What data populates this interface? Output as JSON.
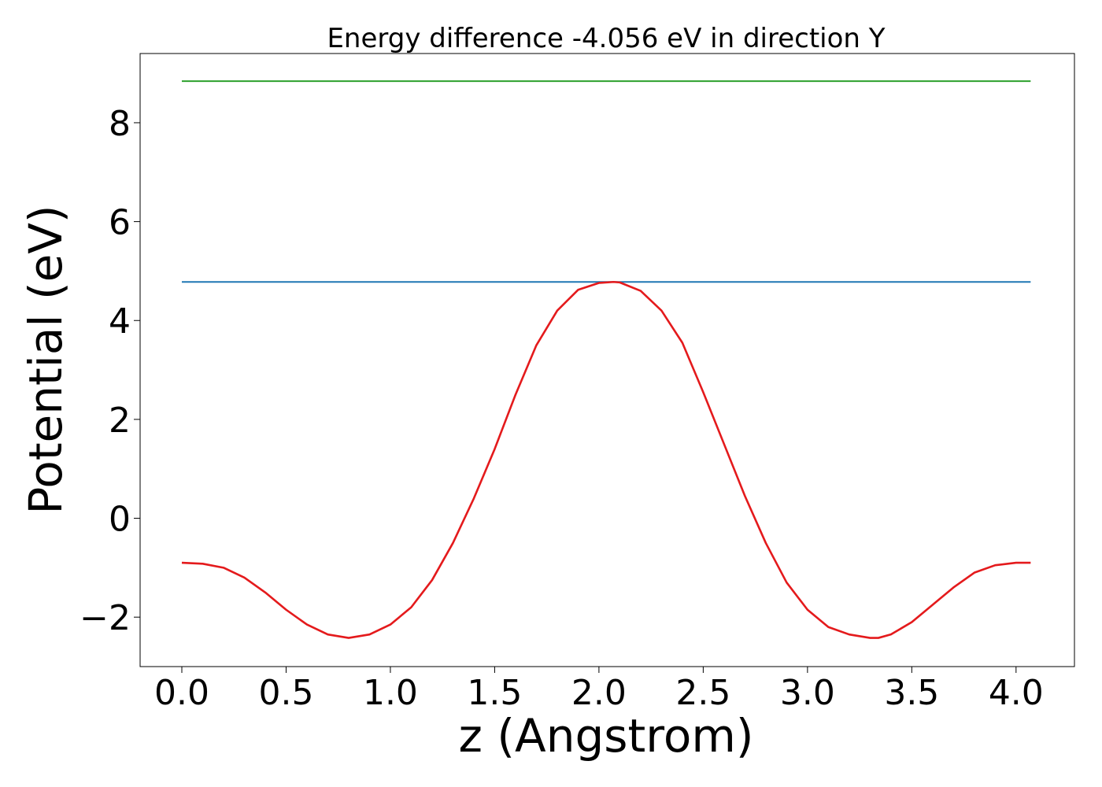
{
  "chart_data": {
    "type": "line",
    "title": "Energy difference -4.056 eV in direction Y",
    "xlabel": "z (Angstrom)",
    "ylabel": "Potential (eV)",
    "xlim": [
      -0.2,
      4.28
    ],
    "ylim": [
      -3.0,
      9.4
    ],
    "xticks": [
      0.0,
      0.5,
      1.0,
      1.5,
      2.0,
      2.5,
      3.0,
      3.5,
      4.0
    ],
    "xtick_labels": [
      "0.0",
      "0.5",
      "1.0",
      "1.5",
      "2.0",
      "2.5",
      "3.0",
      "3.5",
      "4.0"
    ],
    "yticks": [
      -2,
      0,
      2,
      4,
      6,
      8
    ],
    "ytick_labels": [
      "−2",
      "0",
      "2",
      "4",
      "6",
      "8"
    ],
    "grid": false,
    "series": [
      {
        "color": "#2ca02c",
        "x": [
          0.0,
          4.07
        ],
        "y": [
          8.84,
          8.84
        ]
      },
      {
        "color": "#1f77b4",
        "x": [
          0.0,
          4.07
        ],
        "y": [
          4.78,
          4.78
        ]
      },
      {
        "color": "#e41a1c",
        "x": [
          0.0,
          0.1,
          0.2,
          0.3,
          0.4,
          0.5,
          0.6,
          0.7,
          0.8,
          0.9,
          1.0,
          1.1,
          1.2,
          1.3,
          1.4,
          1.5,
          1.6,
          1.7,
          1.8,
          1.9,
          2.0,
          2.07,
          2.1,
          2.2,
          2.3,
          2.4,
          2.5,
          2.6,
          2.7,
          2.8,
          2.9,
          3.0,
          3.1,
          3.2,
          3.3,
          3.34,
          3.4,
          3.5,
          3.6,
          3.7,
          3.8,
          3.9,
          4.0,
          4.07
        ],
        "y": [
          -0.9,
          -0.92,
          -1.0,
          -1.2,
          -1.5,
          -1.85,
          -2.15,
          -2.35,
          -2.42,
          -2.35,
          -2.15,
          -1.8,
          -1.25,
          -0.5,
          0.4,
          1.4,
          2.5,
          3.5,
          4.2,
          4.62,
          4.76,
          4.78,
          4.77,
          4.6,
          4.2,
          3.55,
          2.55,
          1.5,
          0.45,
          -0.5,
          -1.3,
          -1.85,
          -2.2,
          -2.35,
          -2.42,
          -2.42,
          -2.35,
          -2.1,
          -1.75,
          -1.4,
          -1.1,
          -0.95,
          -0.9,
          -0.9
        ]
      }
    ]
  }
}
